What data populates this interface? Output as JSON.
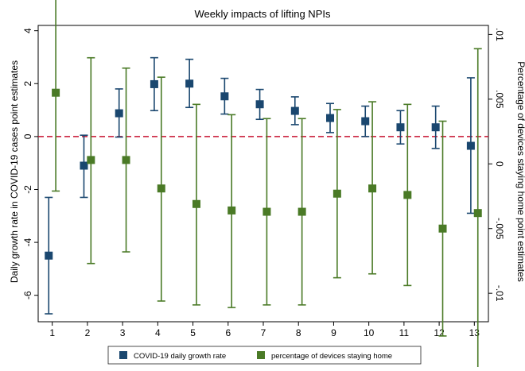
{
  "chart_data": {
    "type": "scatter",
    "title": "Weekly impacts of lifting NPIs",
    "xlabel": "",
    "ylabel_left": "Daily growth rate in COVID-19 cases point estimates",
    "ylabel_right": "Percentage of devices staying home point estimates",
    "x": [
      1,
      2,
      3,
      4,
      5,
      6,
      7,
      8,
      9,
      10,
      11,
      12,
      13
    ],
    "x_ticks": [
      "1",
      "2",
      "3",
      "4",
      "5",
      "6",
      "7",
      "8",
      "9",
      "10",
      "11",
      "12",
      "13"
    ],
    "ylim_left": [
      -7,
      4.2
    ],
    "yticks_left": [
      "4",
      "2",
      "0",
      "-2",
      "-4",
      "-6"
    ],
    "ylim_right": [
      -0.0122,
      0.0107
    ],
    "yticks_right": [
      ".01",
      ".005",
      "0",
      "-.005",
      "-.01"
    ],
    "reference_line_left": 0,
    "series": [
      {
        "name": "COVID-19 daily growth rate",
        "axis": "left",
        "color": "#1a476f",
        "values": [
          -4.5,
          -1.1,
          0.88,
          1.98,
          2.0,
          1.52,
          1.22,
          0.97,
          0.7,
          0.58,
          0.35,
          0.35,
          -0.35
        ],
        "ci_low": [
          -6.7,
          -2.3,
          -0.02,
          0.98,
          1.1,
          0.85,
          0.65,
          0.45,
          0.15,
          0.0,
          -0.28,
          -0.45,
          -2.9
        ],
        "ci_high": [
          -2.3,
          0.05,
          1.8,
          2.98,
          2.92,
          2.2,
          1.78,
          1.5,
          1.25,
          1.15,
          0.98,
          1.15,
          2.22
        ]
      },
      {
        "name": "percentage of devices staying home",
        "axis": "right",
        "color": "#4a7a26",
        "values": [
          0.0055,
          0.0003,
          0.0003,
          -0.0019,
          -0.0031,
          -0.0036,
          -0.0037,
          -0.0037,
          -0.0023,
          -0.0019,
          -0.0024,
          -0.005,
          -0.0038
        ],
        "ci_low": [
          -0.0021,
          -0.0077,
          -0.0068,
          -0.0106,
          -0.0109,
          -0.0111,
          -0.0109,
          -0.0109,
          -0.0088,
          -0.0085,
          -0.0094,
          -0.0133,
          -0.0165
        ],
        "ci_high": [
          0.0134,
          0.0082,
          0.0074,
          0.0067,
          0.0046,
          0.0038,
          0.0035,
          0.0035,
          0.0042,
          0.0048,
          0.0046,
          0.0033,
          0.0089
        ]
      }
    ],
    "legend_position": "bottom"
  }
}
